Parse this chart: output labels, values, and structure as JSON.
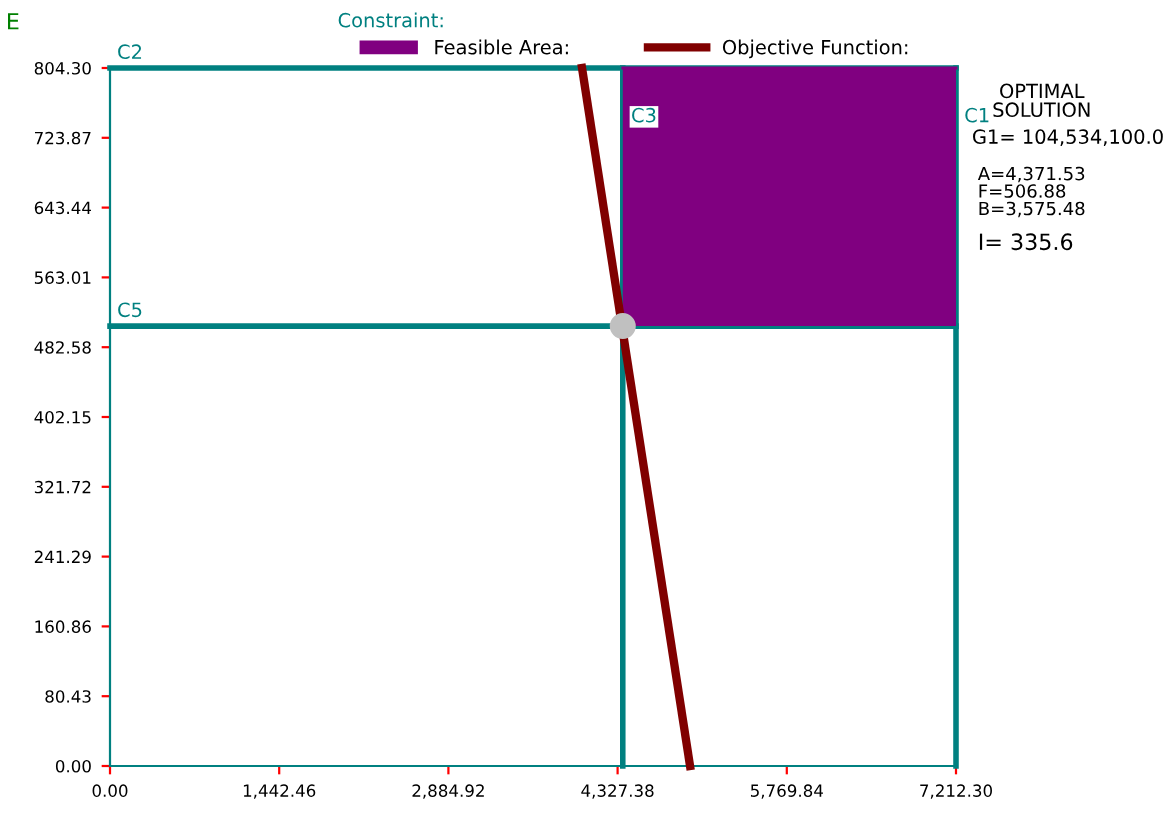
{
  "chart_data": {
    "type": "line",
    "xlim": [
      0,
      7212.3
    ],
    "ylim": [
      0,
      804.3
    ],
    "xticks": [
      {
        "value": 0,
        "label": "0.00"
      },
      {
        "value": 1442.46,
        "label": "1,442.46"
      },
      {
        "value": 2884.92,
        "label": "2,884.92"
      },
      {
        "value": 4327.38,
        "label": "4,327.38"
      },
      {
        "value": 5769.84,
        "label": "5,769.84"
      },
      {
        "value": 7212.3,
        "label": "7,212.30"
      }
    ],
    "yticks": [
      {
        "value": 0,
        "label": "0.00"
      },
      80.43,
      160.86,
      241.29,
      321.72,
      402.15,
      482.58,
      563.01,
      643.44,
      723.87,
      {
        "value": 804.3,
        "label": "804.30"
      }
    ],
    "series": [
      {
        "name": "Feasible Area:",
        "type": "line",
        "color": "#800080",
        "x": [
          4371.53,
          7212.3
        ],
        "lower": [
          506.88,
          506.88
        ],
        "upper": [
          804.3,
          804.3
        ],
        "values": [
          804.3,
          804.3
        ]
      },
      {
        "name": "C1",
        "color": "#008080",
        "x": [
          7212.3,
          7212.3
        ],
        "values": [
          0,
          804.3
        ]
      },
      {
        "name": "C2",
        "color": "#008080",
        "x": [
          0,
          7212.3
        ],
        "values": [
          804.3,
          804.3
        ]
      },
      {
        "name": "C3",
        "color": "#008080",
        "x": [
          4371.53,
          4371.53
        ],
        "values": [
          0,
          804.3
        ]
      },
      {
        "name": "C5",
        "color": "#008080",
        "x": [
          0,
          7212.3
        ],
        "values": [
          506.88,
          506.88
        ]
      },
      {
        "name": "Objective Function:",
        "color": "#800000",
        "x": [
          4024,
          4945
        ],
        "values": [
          804.3,
          0
        ]
      },
      {
        "type": "scatter",
        "color": "#c0c0c0",
        "x": [
          4371.53
        ],
        "values": [
          506.88
        ]
      }
    ],
    "annotations": [
      "E",
      "Constraint:",
      "OPTIMAL\nSOLUTION",
      "G1= 104,534,100.0",
      "A=4,371.53\nF=506.88\nB=3,575.48",
      "I= 335.6"
    ],
    "legend": "top",
    "grid": false
  }
}
